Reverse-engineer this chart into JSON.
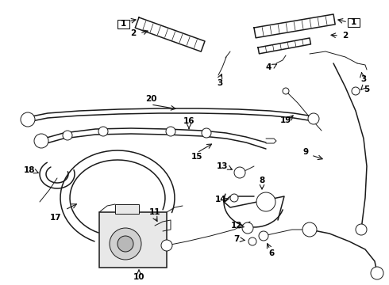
{
  "bg_color": "#ffffff",
  "line_color": "#1a1a1a",
  "text_color": "#000000",
  "figsize": [
    4.9,
    3.6
  ],
  "dpi": 100,
  "label_fontsize": 7.5,
  "label_fontweight": "bold"
}
